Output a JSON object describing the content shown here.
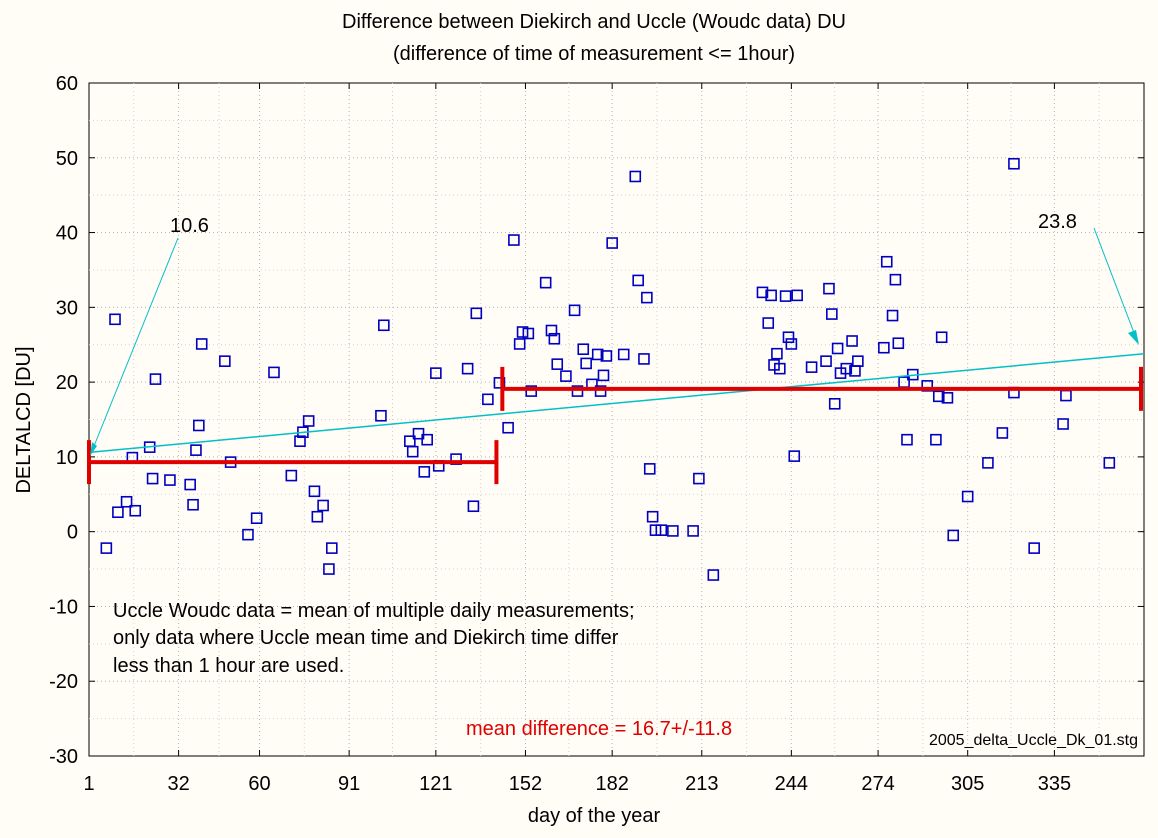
{
  "chart_data": {
    "type": "scatter",
    "title": "Difference between Diekirch and Uccle (Woudc data) DU",
    "subtitle": "(difference of time of measurement <= 1hour)",
    "xlabel": "day of the year",
    "ylabel": "DELTALCD [DU]",
    "xlim": [
      1,
      366
    ],
    "ylim": [
      -30,
      60
    ],
    "xticks": [
      1,
      32,
      60,
      91,
      121,
      152,
      182,
      213,
      244,
      274,
      305,
      335
    ],
    "yticks": [
      -30,
      -20,
      -10,
      0,
      10,
      20,
      30,
      40,
      50,
      60
    ],
    "grid": true,
    "marker_color": "#0000c0",
    "trend_color": "#00c0c8",
    "mean_color": "#e00000",
    "points": [
      [
        7,
        -2.2
      ],
      [
        10,
        28.4
      ],
      [
        11,
        2.6
      ],
      [
        14,
        4
      ],
      [
        16,
        9.9
      ],
      [
        17,
        2.8
      ],
      [
        22,
        11.3
      ],
      [
        23,
        7.1
      ],
      [
        24,
        20.4
      ],
      [
        29,
        6.9
      ],
      [
        36,
        6.3
      ],
      [
        37,
        3.6
      ],
      [
        38,
        10.9
      ],
      [
        39,
        14.2
      ],
      [
        40,
        25.1
      ],
      [
        48,
        22.8
      ],
      [
        50,
        9.3
      ],
      [
        56,
        -0.4
      ],
      [
        59,
        1.8
      ],
      [
        65,
        21.3
      ],
      [
        71,
        7.5
      ],
      [
        74,
        12.1
      ],
      [
        75,
        13.3
      ],
      [
        77,
        14.8
      ],
      [
        79,
        5.4
      ],
      [
        80,
        2
      ],
      [
        82,
        3.5
      ],
      [
        84,
        -5
      ],
      [
        85,
        -2.2
      ],
      [
        102,
        15.5
      ],
      [
        103,
        27.6
      ],
      [
        112,
        12.1
      ],
      [
        113,
        10.7
      ],
      [
        115,
        13.1
      ],
      [
        117,
        8
      ],
      [
        118,
        12.3
      ],
      [
        121,
        21.2
      ],
      [
        122,
        8.8
      ],
      [
        128,
        9.7
      ],
      [
        132,
        21.8
      ],
      [
        134,
        3.4
      ],
      [
        135,
        29.2
      ],
      [
        139,
        17.7
      ],
      [
        143,
        19.9
      ],
      [
        146,
        13.9
      ],
      [
        148,
        39
      ],
      [
        150,
        25.1
      ],
      [
        151,
        26.7
      ],
      [
        153,
        26.5
      ],
      [
        154,
        18.8
      ],
      [
        159,
        33.3
      ],
      [
        161,
        26.9
      ],
      [
        162,
        25.8
      ],
      [
        163,
        22.4
      ],
      [
        166,
        20.8
      ],
      [
        169,
        29.6
      ],
      [
        170,
        18.8
      ],
      [
        172,
        24.4
      ],
      [
        173,
        22.5
      ],
      [
        175,
        19.7
      ],
      [
        177,
        23.7
      ],
      [
        178,
        18.8
      ],
      [
        179,
        20.9
      ],
      [
        180,
        23.5
      ],
      [
        182,
        38.6
      ],
      [
        186,
        23.7
      ],
      [
        190,
        47.5
      ],
      [
        191,
        33.6
      ],
      [
        193,
        23.1
      ],
      [
        194,
        31.3
      ],
      [
        195,
        8.4
      ],
      [
        196,
        2
      ],
      [
        197,
        0.2
      ],
      [
        199,
        0.2
      ],
      [
        203,
        0.1
      ],
      [
        210,
        0.1
      ],
      [
        212,
        7.1
      ],
      [
        217,
        -5.8
      ],
      [
        234,
        32
      ],
      [
        236,
        27.9
      ],
      [
        237,
        31.6
      ],
      [
        238,
        22.3
      ],
      [
        239,
        23.8
      ],
      [
        240,
        21.8
      ],
      [
        242,
        31.5
      ],
      [
        243,
        26
      ],
      [
        244,
        25.1
      ],
      [
        245,
        10.1
      ],
      [
        246,
        31.6
      ],
      [
        251,
        22
      ],
      [
        256,
        22.8
      ],
      [
        257,
        32.5
      ],
      [
        258,
        29.1
      ],
      [
        259,
        17.1
      ],
      [
        260,
        24.5
      ],
      [
        261,
        21.2
      ],
      [
        263,
        21.8
      ],
      [
        265,
        25.5
      ],
      [
        266,
        21.5
      ],
      [
        267,
        22.8
      ],
      [
        276,
        24.6
      ],
      [
        277,
        36.1
      ],
      [
        279,
        28.9
      ],
      [
        280,
        33.7
      ],
      [
        281,
        25.2
      ],
      [
        283,
        20
      ],
      [
        284,
        12.3
      ],
      [
        286,
        21
      ],
      [
        291,
        19.5
      ],
      [
        294,
        12.3
      ],
      [
        295,
        18.1
      ],
      [
        296,
        26
      ],
      [
        298,
        17.9
      ],
      [
        300,
        -0.5
      ],
      [
        305,
        4.7
      ],
      [
        312,
        9.2
      ],
      [
        317,
        13.2
      ],
      [
        321,
        18.6
      ],
      [
        321,
        49.2
      ],
      [
        328,
        -2.2
      ],
      [
        338,
        14.4
      ],
      [
        339,
        18.2
      ],
      [
        354,
        9.2
      ]
    ],
    "trend_line": {
      "x": [
        1,
        366
      ],
      "y": [
        10.6,
        23.8
      ]
    },
    "mean_segments": [
      {
        "x": [
          1,
          143
        ],
        "y": 9.3
      },
      {
        "x": [
          144,
          366
        ],
        "y": 19.1
      }
    ]
  },
  "annotations": {
    "trend_start_label": "10.6",
    "trend_end_label": "23.8",
    "note_lines": [
      "Uccle Woudc data = mean of multiple daily measurements;",
      "only data where Uccle mean time and Diekirch time  differ",
      "less than 1 hour are used."
    ],
    "mean_difference": "mean difference = 16.7+/-11.8",
    "file_name": "2005_delta_Uccle_Dk_01.stg"
  }
}
